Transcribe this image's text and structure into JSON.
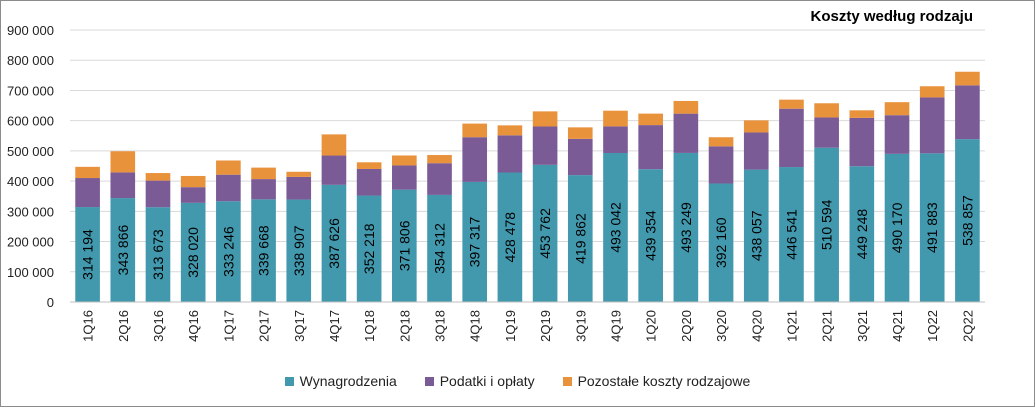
{
  "chart_data": {
    "type": "bar",
    "stacked": true,
    "title": "Koszty według rodzaju",
    "xlabel": "",
    "ylabel": "",
    "ylim": [
      0,
      900000
    ],
    "yticks": [
      "0",
      "100 000",
      "200 000",
      "300 000",
      "400 000",
      "500 000",
      "600 000",
      "700 000",
      "800 000",
      "900 000"
    ],
    "grid": true,
    "legend_position": "bottom",
    "categories": [
      "1Q16",
      "2Q16",
      "3Q16",
      "4Q16",
      "1Q17",
      "2Q17",
      "3Q17",
      "4Q17",
      "1Q18",
      "2Q18",
      "3Q18",
      "4Q18",
      "1Q19",
      "2Q19",
      "3Q19",
      "4Q19",
      "1Q20",
      "2Q20",
      "3Q20",
      "4Q20",
      "1Q21",
      "2Q21",
      "3Q21",
      "4Q21",
      "1Q22",
      "2Q22"
    ],
    "series": [
      {
        "name": "Wynagrodzenia",
        "color": "#4299ae",
        "values": [
          314194,
          343866,
          313673,
          328020,
          333246,
          339668,
          338907,
          387626,
          352218,
          371806,
          354312,
          397317,
          428478,
          453762,
          419862,
          493042,
          439354,
          493249,
          392160,
          438057,
          446541,
          510594,
          449248,
          490170,
          491883,
          538857
        ],
        "labels": [
          "314 194",
          "343 866",
          "313 673",
          "328 020",
          "333 246",
          "339 668",
          "338 907",
          "387 626",
          "352 218",
          "371 806",
          "354 312",
          "397 317",
          "428 478",
          "453 762",
          "419 862",
          "493 042",
          "439 354",
          "493 249",
          "392 160",
          "438 057",
          "446 541",
          "510 594",
          "449 248",
          "490 170",
          "491 883",
          "538 857"
        ]
      },
      {
        "name": "Podatki i opłaty",
        "color": "#7b5b96",
        "values": [
          96000,
          85000,
          88000,
          52000,
          88000,
          67000,
          75000,
          97000,
          88000,
          80000,
          105000,
          148000,
          123000,
          127000,
          120000,
          88000,
          146000,
          130000,
          123000,
          123000,
          193000,
          100000,
          160000,
          128000,
          185000,
          178000
        ]
      },
      {
        "name": "Pozostałe koszty rodzajowe",
        "color": "#e9923c",
        "values": [
          37000,
          70000,
          25000,
          37000,
          47000,
          38000,
          17000,
          70000,
          22000,
          33000,
          27000,
          45000,
          33000,
          50000,
          38000,
          52000,
          38000,
          42000,
          30000,
          40000,
          30000,
          47000,
          25000,
          43000,
          37000,
          45000
        ]
      }
    ]
  }
}
